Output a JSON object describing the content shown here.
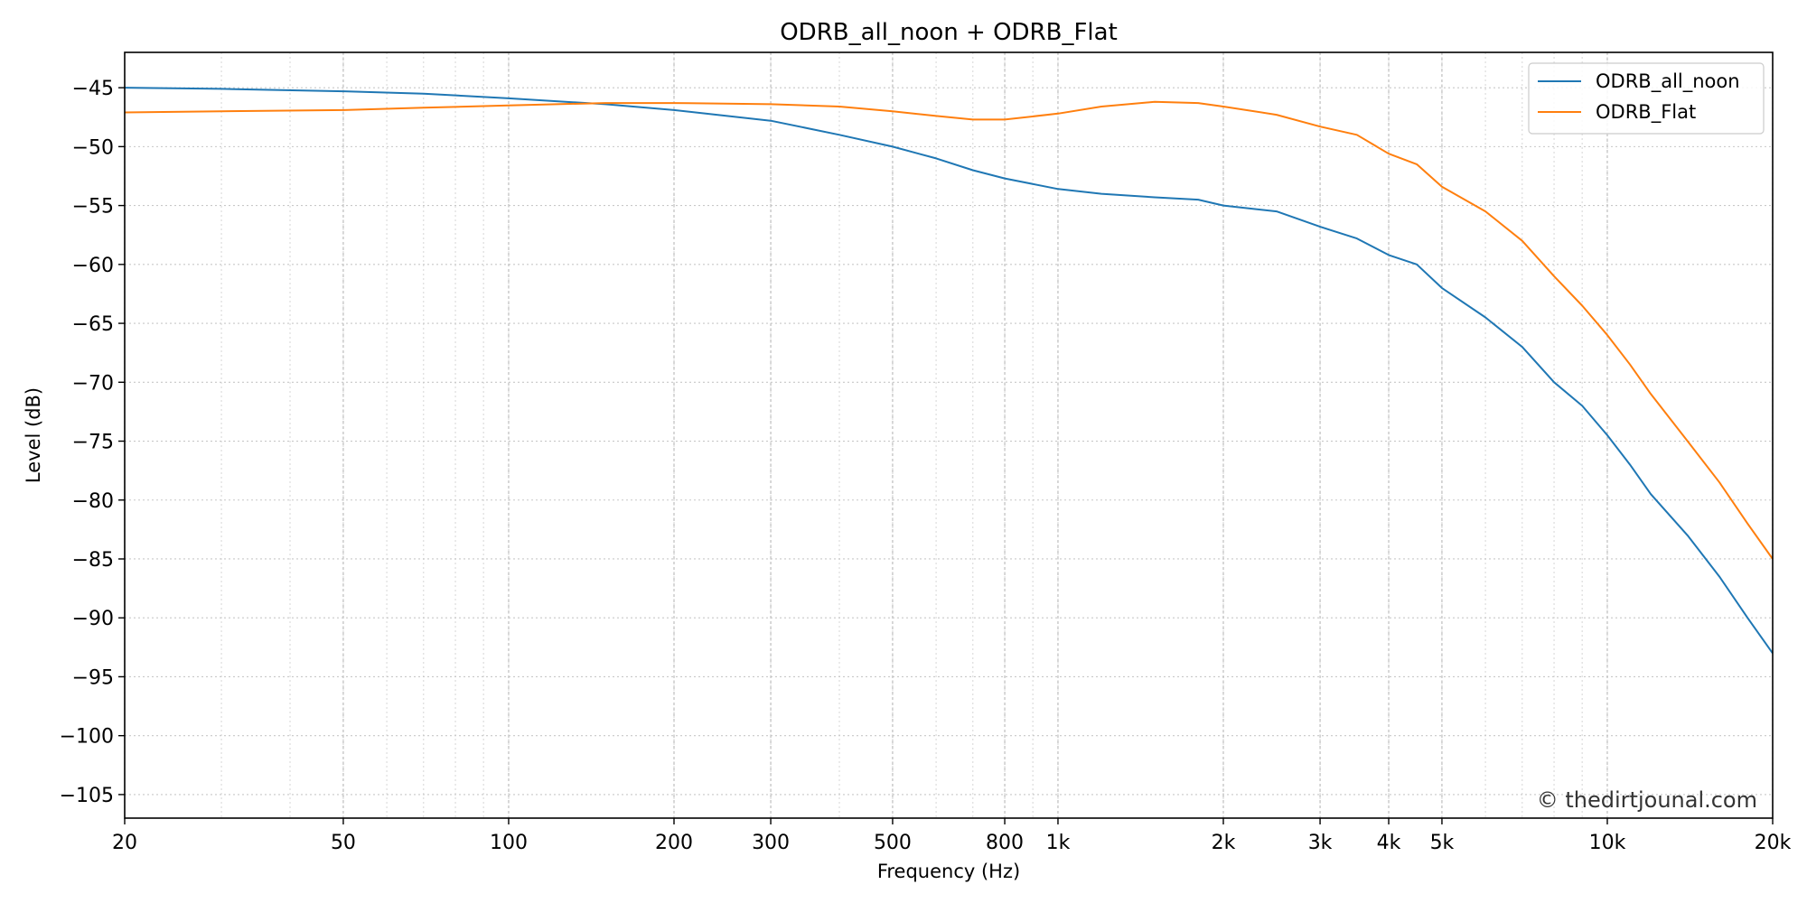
{
  "chart_data": {
    "type": "line",
    "title": "ODRB_all_noon + ODRB_Flat",
    "xlabel": "Frequency (Hz)",
    "ylabel": "Level (dB)",
    "x_scale": "log",
    "xlim": [
      20,
      20000
    ],
    "ylim": [
      -107,
      -42
    ],
    "grid": true,
    "legend_position": "top-right",
    "x_ticks": [
      {
        "value": 20,
        "label": "20"
      },
      {
        "value": 50,
        "label": "50"
      },
      {
        "value": 100,
        "label": "100"
      },
      {
        "value": 200,
        "label": "200"
      },
      {
        "value": 300,
        "label": "300"
      },
      {
        "value": 500,
        "label": "500"
      },
      {
        "value": 800,
        "label": "800"
      },
      {
        "value": 1000,
        "label": "1k"
      },
      {
        "value": 2000,
        "label": "2k"
      },
      {
        "value": 3000,
        "label": "3k"
      },
      {
        "value": 4000,
        "label": "4k"
      },
      {
        "value": 5000,
        "label": "5k"
      },
      {
        "value": 10000,
        "label": "10k"
      },
      {
        "value": 20000,
        "label": "20k"
      }
    ],
    "y_ticks": [
      {
        "value": -45,
        "label": "−45"
      },
      {
        "value": -50,
        "label": "−50"
      },
      {
        "value": -55,
        "label": "−55"
      },
      {
        "value": -60,
        "label": "−60"
      },
      {
        "value": -65,
        "label": "−65"
      },
      {
        "value": -70,
        "label": "−70"
      },
      {
        "value": -75,
        "label": "−75"
      },
      {
        "value": -80,
        "label": "−80"
      },
      {
        "value": -85,
        "label": "−85"
      },
      {
        "value": -90,
        "label": "−90"
      },
      {
        "value": -95,
        "label": "−95"
      },
      {
        "value": -100,
        "label": "−100"
      },
      {
        "value": -105,
        "label": "−105"
      }
    ],
    "series": [
      {
        "name": "ODRB_all_noon",
        "color": "#1f77b4",
        "x": [
          20,
          30,
          50,
          70,
          100,
          150,
          200,
          300,
          400,
          500,
          600,
          700,
          800,
          1000,
          1200,
          1500,
          1800,
          2000,
          2500,
          3000,
          3500,
          4000,
          4500,
          5000,
          6000,
          7000,
          8000,
          9000,
          10000,
          11000,
          12000,
          14000,
          16000,
          18000,
          20000
        ],
        "y": [
          -45.0,
          -45.1,
          -45.3,
          -45.5,
          -45.9,
          -46.4,
          -46.9,
          -47.8,
          -49.0,
          -50.0,
          -51.0,
          -52.0,
          -52.7,
          -53.6,
          -54.0,
          -54.3,
          -54.5,
          -55.0,
          -55.5,
          -56.8,
          -57.8,
          -59.2,
          -60.0,
          -62.0,
          -64.5,
          -67.0,
          -70.0,
          -72.0,
          -74.5,
          -77.0,
          -79.5,
          -83.0,
          -86.5,
          -90.0,
          -93.0
        ]
      },
      {
        "name": "ODRB_Flat",
        "color": "#ff7f0e",
        "x": [
          20,
          30,
          50,
          70,
          100,
          150,
          200,
          300,
          400,
          500,
          600,
          700,
          800,
          1000,
          1200,
          1500,
          1800,
          2000,
          2500,
          3000,
          3500,
          4000,
          4500,
          5000,
          6000,
          7000,
          8000,
          9000,
          10000,
          11000,
          12000,
          14000,
          16000,
          18000,
          20000
        ],
        "y": [
          -47.1,
          -47.0,
          -46.9,
          -46.7,
          -46.5,
          -46.3,
          -46.3,
          -46.4,
          -46.6,
          -47.0,
          -47.4,
          -47.7,
          -47.7,
          -47.2,
          -46.6,
          -46.2,
          -46.3,
          -46.6,
          -47.3,
          -48.3,
          -49.0,
          -50.6,
          -51.5,
          -53.4,
          -55.5,
          -58.0,
          -61.0,
          -63.5,
          -66.0,
          -68.5,
          -71.0,
          -75.0,
          -78.5,
          -82.0,
          -85.0
        ]
      }
    ]
  },
  "watermark": "© thedirtjounal.com"
}
